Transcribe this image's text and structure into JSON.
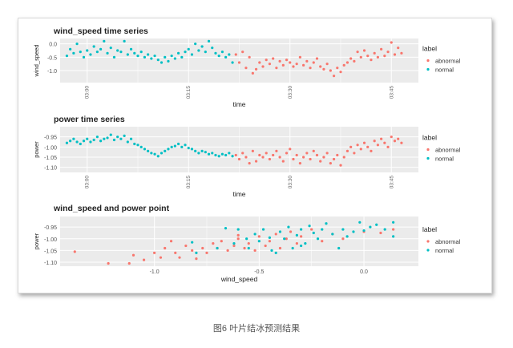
{
  "caption": "图6 叶片结冰预测结果",
  "colors": {
    "abnormal": "#F8766D",
    "normal": "#00BFC4",
    "panel_bg": "#EBEBEB",
    "grid": "#FFFFFF"
  },
  "legend": {
    "title": "label",
    "items": [
      "abnormal",
      "normal"
    ]
  },
  "chart_data": [
    {
      "type": "scatter",
      "title": "wind_speed time series",
      "xlabel": "time",
      "ylabel": "wind_speed",
      "xlim": [
        "02:56",
        "03:49"
      ],
      "ylim": [
        -1.45,
        0.2
      ],
      "xticks": [
        "03:00",
        "03:15",
        "03:30",
        "03:45"
      ],
      "yticks": [
        0.0,
        -0.5,
        -1.0
      ],
      "ytick_labels": [
        "0.0",
        "-0.5",
        "-1.0"
      ],
      "grid": true,
      "legend": "right",
      "series": [
        {
          "name": "normal",
          "start": "02:57:00",
          "interval_seconds": 30,
          "values": [
            -0.45,
            -0.2,
            -0.35,
            0.0,
            -0.3,
            -0.5,
            -0.25,
            -0.4,
            -0.1,
            -0.3,
            -0.2,
            0.1,
            -0.35,
            -0.15,
            -0.5,
            -0.25,
            -0.3,
            0.1,
            -0.4,
            -0.2,
            -0.35,
            -0.45,
            -0.3,
            -0.5,
            -0.4,
            -0.55,
            -0.45,
            -0.6,
            -0.7,
            -0.5,
            -0.65,
            -0.45,
            -0.55,
            -0.35,
            -0.5,
            -0.3,
            -0.2,
            -0.4,
            0.0,
            -0.25,
            -0.1,
            -0.3,
            0.1,
            -0.15,
            -0.35,
            -0.45,
            -0.3,
            -0.5,
            -0.4,
            -0.7
          ]
        },
        {
          "name": "abnormal",
          "start": "03:22:00",
          "interval_seconds": 30,
          "values": [
            -0.4,
            -0.7,
            -0.3,
            -0.9,
            -0.5,
            -1.1,
            -0.95,
            -0.7,
            -0.85,
            -0.6,
            -0.75,
            -0.55,
            -0.9,
            -0.65,
            -0.8,
            -0.6,
            -0.7,
            -0.85,
            -0.75,
            -0.5,
            -0.8,
            -0.65,
            -0.9,
            -0.7,
            -0.55,
            -0.85,
            -0.95,
            -0.75,
            -1.0,
            -1.2,
            -0.9,
            -1.05,
            -0.8,
            -0.7,
            -0.55,
            -0.65,
            -0.3,
            -0.5,
            -0.25,
            -0.45,
            -0.6,
            -0.35,
            -0.5,
            -0.2,
            -0.45,
            -0.3,
            0.05,
            -0.4,
            -0.15,
            -0.35
          ]
        }
      ]
    },
    {
      "type": "scatter",
      "title": "power time series",
      "xlabel": "time",
      "ylabel": "power",
      "xlim": [
        "02:56",
        "03:49"
      ],
      "ylim": [
        -1.125,
        -0.9
      ],
      "xticks": [
        "03:00",
        "03:15",
        "03:30",
        "03:45"
      ],
      "yticks": [
        -0.95,
        -1.0,
        -1.05,
        -1.1
      ],
      "ytick_labels": [
        "-0.95",
        "-1.00",
        "-1.05",
        "-1.10"
      ],
      "grid": true,
      "legend": "right",
      "series": [
        {
          "name": "normal",
          "start": "02:57:00",
          "interval_seconds": 30,
          "values": [
            -0.98,
            -0.97,
            -0.96,
            -0.975,
            -0.985,
            -0.97,
            -0.96,
            -0.975,
            -0.965,
            -0.95,
            -0.97,
            -0.96,
            -0.955,
            -0.94,
            -0.965,
            -0.95,
            -0.96,
            -0.945,
            -0.975,
            -0.96,
            -0.985,
            -0.99,
            -1.0,
            -1.01,
            -1.02,
            -1.03,
            -1.035,
            -1.045,
            -1.03,
            -1.02,
            -1.01,
            -1.0,
            -0.995,
            -0.985,
            -1.0,
            -0.99,
            -1.005,
            -1.01,
            -1.02,
            -1.03,
            -1.02,
            -1.025,
            -1.035,
            -1.03,
            -1.04,
            -1.045,
            -1.035,
            -1.04,
            -1.03,
            -1.045
          ]
        },
        {
          "name": "abnormal",
          "start": "03:22:00",
          "interval_seconds": 30,
          "values": [
            -1.04,
            -1.06,
            -1.03,
            -1.05,
            -1.08,
            -1.02,
            -1.07,
            -1.04,
            -1.05,
            -1.03,
            -1.06,
            -1.04,
            -1.02,
            -1.05,
            -1.07,
            -1.03,
            -1.01,
            -1.06,
            -1.04,
            -1.08,
            -1.05,
            -1.03,
            -1.06,
            -1.02,
            -1.04,
            -1.07,
            -1.05,
            -1.03,
            -1.08,
            -1.06,
            -1.04,
            -1.09,
            -1.05,
            -1.02,
            -1.0,
            -1.03,
            -0.99,
            -1.01,
            -0.98,
            -1.0,
            -1.02,
            -0.97,
            -0.99,
            -0.96,
            -0.98,
            -1.0,
            -0.95,
            -0.97,
            -0.96,
            -0.98
          ]
        }
      ]
    },
    {
      "type": "scatter",
      "title": "wind_speed and power point",
      "xlabel": "wind_speed",
      "ylabel": "power",
      "xlim": [
        -1.45,
        0.26
      ],
      "ylim": [
        -1.117,
        -0.905
      ],
      "xticks": [
        -1.0,
        -0.5,
        0.0
      ],
      "xtick_labels": [
        "-1.0",
        "-0.5",
        "0.0"
      ],
      "yticks": [
        -0.95,
        -1.0,
        -1.05,
        -1.1
      ],
      "ytick_labels": [
        "-0.95",
        "-1.00",
        "-1.05",
        "-1.10"
      ],
      "grid": true,
      "legend": "right",
      "series": [
        {
          "name": "abnormal",
          "points": [
            [
              -1.38,
              -1.055
            ],
            [
              -1.22,
              -1.105
            ],
            [
              -1.12,
              -1.105
            ],
            [
              -1.1,
              -1.07
            ],
            [
              -1.05,
              -1.09
            ],
            [
              -1.0,
              -1.06
            ],
            [
              -0.97,
              -1.08
            ],
            [
              -0.95,
              -1.04
            ],
            [
              -0.92,
              -1.01
            ],
            [
              -0.9,
              -1.06
            ],
            [
              -0.88,
              -1.08
            ],
            [
              -0.85,
              -1.03
            ],
            [
              -0.82,
              -1.05
            ],
            [
              -0.8,
              -1.085
            ],
            [
              -0.77,
              -1.04
            ],
            [
              -0.75,
              -1.06
            ],
            [
              -0.72,
              -1.02
            ],
            [
              -0.7,
              -1.04
            ],
            [
              -0.68,
              -1.01
            ],
            [
              -0.65,
              -1.05
            ],
            [
              -0.62,
              -1.03
            ],
            [
              -0.6,
              -1.0
            ],
            [
              -0.57,
              -1.04
            ],
            [
              -0.55,
              -1.02
            ],
            [
              -0.52,
              -1.05
            ],
            [
              -0.5,
              -0.99
            ],
            [
              -0.47,
              -1.03
            ],
            [
              -0.45,
              -1.01
            ],
            [
              -0.42,
              -0.98
            ],
            [
              -0.4,
              -1.04
            ],
            [
              -0.37,
              -1.0
            ],
            [
              -0.35,
              -0.97
            ],
            [
              -0.32,
              -1.02
            ],
            [
              -0.3,
              -0.99
            ],
            [
              -0.25,
              -0.96
            ],
            [
              -0.2,
              -1.01
            ],
            [
              -0.15,
              -0.98
            ],
            [
              -0.1,
              -1.0
            ],
            [
              0.0,
              -0.97
            ],
            [
              0.08,
              -0.975
            ],
            [
              0.14,
              -0.96
            ],
            [
              -0.6,
              -0.985
            ]
          ]
        },
        {
          "name": "normal",
          "points": [
            [
              -0.82,
              -1.015
            ],
            [
              -0.8,
              -1.06
            ],
            [
              -0.7,
              -1.04
            ],
            [
              -0.66,
              -0.955
            ],
            [
              -0.62,
              -1.02
            ],
            [
              -0.6,
              -0.96
            ],
            [
              -0.56,
              -1.0
            ],
            [
              -0.55,
              -1.04
            ],
            [
              -0.52,
              -0.98
            ],
            [
              -0.5,
              -1.01
            ],
            [
              -0.48,
              -0.96
            ],
            [
              -0.45,
              -0.995
            ],
            [
              -0.42,
              -1.06
            ],
            [
              -0.4,
              -0.97
            ],
            [
              -0.38,
              -1.0
            ],
            [
              -0.36,
              -0.95
            ],
            [
              -0.34,
              -1.04
            ],
            [
              -0.32,
              -0.985
            ],
            [
              -0.3,
              -0.96
            ],
            [
              -0.28,
              -1.02
            ],
            [
              -0.26,
              -0.945
            ],
            [
              -0.24,
              -0.975
            ],
            [
              -0.22,
              -1.0
            ],
            [
              -0.2,
              -0.96
            ],
            [
              -0.18,
              -0.935
            ],
            [
              -0.15,
              -0.98
            ],
            [
              -0.12,
              -1.04
            ],
            [
              -0.1,
              -0.96
            ],
            [
              -0.08,
              -0.99
            ],
            [
              -0.05,
              -0.97
            ],
            [
              -0.02,
              -0.93
            ],
            [
              0.0,
              -0.965
            ],
            [
              0.03,
              -0.95
            ],
            [
              0.06,
              -0.94
            ],
            [
              0.1,
              -0.96
            ],
            [
              0.14,
              -0.93
            ],
            [
              0.14,
              -0.99
            ],
            [
              -0.44,
              -1.05
            ],
            [
              -0.3,
              -1.03
            ]
          ]
        }
      ]
    }
  ]
}
